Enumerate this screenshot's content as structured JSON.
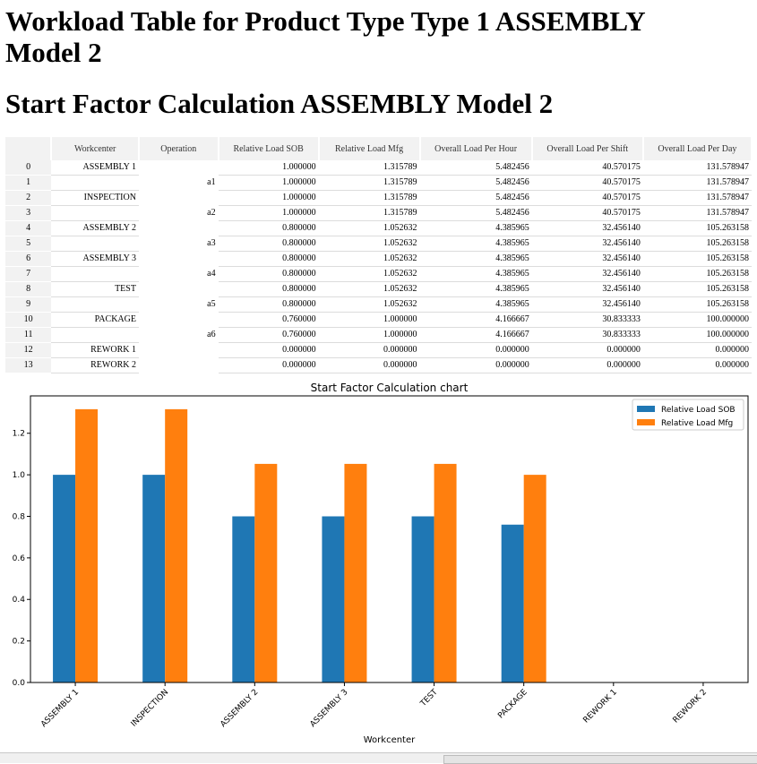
{
  "page": {
    "title": "Workload Table for Product Type Type 1 ASSEMBLY Model 2",
    "subtitle": "Start Factor Calculation ASSEMBLY Model 2"
  },
  "table": {
    "headers": [
      "",
      "Workcenter",
      "Operation",
      "Relative Load SOB",
      "Relative Load Mfg",
      "Overall Load Per Hour",
      "Overall Load Per Shift",
      "Overall Load Per Day"
    ],
    "rows": [
      [
        "0",
        "ASSEMBLY 1",
        "",
        "1.000000",
        "1.315789",
        "5.482456",
        "40.570175",
        "131.578947"
      ],
      [
        "1",
        "",
        "a1",
        "1.000000",
        "1.315789",
        "5.482456",
        "40.570175",
        "131.578947"
      ],
      [
        "2",
        "INSPECTION",
        "",
        "1.000000",
        "1.315789",
        "5.482456",
        "40.570175",
        "131.578947"
      ],
      [
        "3",
        "",
        "a2",
        "1.000000",
        "1.315789",
        "5.482456",
        "40.570175",
        "131.578947"
      ],
      [
        "4",
        "ASSEMBLY 2",
        "",
        "0.800000",
        "1.052632",
        "4.385965",
        "32.456140",
        "105.263158"
      ],
      [
        "5",
        "",
        "a3",
        "0.800000",
        "1.052632",
        "4.385965",
        "32.456140",
        "105.263158"
      ],
      [
        "6",
        "ASSEMBLY 3",
        "",
        "0.800000",
        "1.052632",
        "4.385965",
        "32.456140",
        "105.263158"
      ],
      [
        "7",
        "",
        "a4",
        "0.800000",
        "1.052632",
        "4.385965",
        "32.456140",
        "105.263158"
      ],
      [
        "8",
        "TEST",
        "",
        "0.800000",
        "1.052632",
        "4.385965",
        "32.456140",
        "105.263158"
      ],
      [
        "9",
        "",
        "a5",
        "0.800000",
        "1.052632",
        "4.385965",
        "32.456140",
        "105.263158"
      ],
      [
        "10",
        "PACKAGE",
        "",
        "0.760000",
        "1.000000",
        "4.166667",
        "30.833333",
        "100.000000"
      ],
      [
        "11",
        "",
        "a6",
        "0.760000",
        "1.000000",
        "4.166667",
        "30.833333",
        "100.000000"
      ],
      [
        "12",
        "REWORK 1",
        "",
        "0.000000",
        "0.000000",
        "0.000000",
        "0.000000",
        "0.000000"
      ],
      [
        "13",
        "REWORK 2",
        "",
        "0.000000",
        "0.000000",
        "0.000000",
        "0.000000",
        "0.000000"
      ]
    ]
  },
  "chart_data": {
    "type": "bar",
    "title": "Start Factor Calculation  chart",
    "xlabel": "Workcenter",
    "ylabel": "",
    "categories": [
      "ASSEMBLY 1",
      "INSPECTION",
      "ASSEMBLY 2",
      "ASSEMBLY 3",
      "TEST",
      "PACKAGE",
      "REWORK 1",
      "REWORK 2"
    ],
    "series": [
      {
        "name": "Relative Load SOB",
        "values": [
          1.0,
          1.0,
          0.8,
          0.8,
          0.8,
          0.76,
          0.0,
          0.0
        ],
        "color": "#1f77b4"
      },
      {
        "name": "Relative Load Mfg",
        "values": [
          1.315789,
          1.315789,
          1.052632,
          1.052632,
          1.052632,
          1.0,
          0.0,
          0.0
        ],
        "color": "#ff7f0e"
      }
    ],
    "ylim": [
      0,
      1.38
    ],
    "yticks": [
      "0.0",
      "0.2",
      "0.4",
      "0.6",
      "0.8",
      "1.0",
      "1.2"
    ],
    "legend_position": "top-right",
    "grid": false
  }
}
